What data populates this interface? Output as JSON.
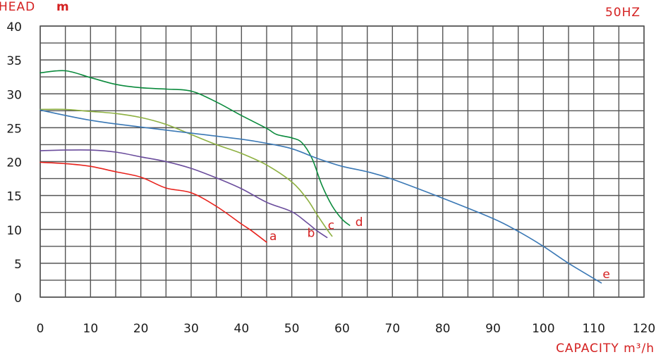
{
  "chart_data": {
    "type": "line",
    "title": "50HZ",
    "ylabel": "HEAD",
    "ylabel_unit": "m",
    "xlabel": "CAPACITY m³/h",
    "xlim": [
      0,
      120
    ],
    "ylim": [
      0,
      40
    ],
    "x_ticks": [
      0,
      10,
      20,
      30,
      40,
      50,
      60,
      70,
      80,
      90,
      100,
      110,
      120
    ],
    "y_ticks": [
      0,
      5,
      10,
      15,
      20,
      25,
      30,
      35,
      40
    ],
    "grid": true,
    "series": [
      {
        "name": "a",
        "color": "#e8231d",
        "points": [
          [
            0,
            19.9
          ],
          [
            5,
            19.7
          ],
          [
            10,
            19.3
          ],
          [
            15,
            18.5
          ],
          [
            20,
            17.7
          ],
          [
            25,
            16.1
          ],
          [
            30,
            15.4
          ],
          [
            35,
            13.4
          ],
          [
            40,
            10.8
          ],
          [
            42,
            9.8
          ],
          [
            45,
            8.1
          ]
        ]
      },
      {
        "name": "b",
        "color": "#6a4c9c",
        "points": [
          [
            0,
            21.6
          ],
          [
            5,
            21.7
          ],
          [
            10,
            21.7
          ],
          [
            15,
            21.4
          ],
          [
            20,
            20.7
          ],
          [
            25,
            20.0
          ],
          [
            30,
            19.0
          ],
          [
            35,
            17.6
          ],
          [
            40,
            16.0
          ],
          [
            45,
            14.0
          ],
          [
            50,
            12.6
          ],
          [
            53,
            11.0
          ],
          [
            55,
            9.8
          ],
          [
            57,
            8.8
          ]
        ]
      },
      {
        "name": "c",
        "color": "#8db040",
        "points": [
          [
            0,
            27.7
          ],
          [
            5,
            27.7
          ],
          [
            10,
            27.4
          ],
          [
            15,
            27.1
          ],
          [
            20,
            26.5
          ],
          [
            25,
            25.5
          ],
          [
            30,
            24.0
          ],
          [
            35,
            22.5
          ],
          [
            40,
            21.2
          ],
          [
            45,
            19.5
          ],
          [
            50,
            17.0
          ],
          [
            53,
            14.5
          ],
          [
            55,
            12.2
          ],
          [
            57,
            10.0
          ],
          [
            58,
            9.0
          ]
        ]
      },
      {
        "name": "d",
        "color": "#0a8a3c",
        "points": [
          [
            0,
            33.1
          ],
          [
            5,
            33.4
          ],
          [
            10,
            32.4
          ],
          [
            15,
            31.4
          ],
          [
            20,
            30.9
          ],
          [
            25,
            30.7
          ],
          [
            30,
            30.4
          ],
          [
            35,
            28.8
          ],
          [
            40,
            26.8
          ],
          [
            45,
            24.9
          ],
          [
            47,
            24.0
          ],
          [
            50,
            23.5
          ],
          [
            52,
            22.8
          ],
          [
            54,
            20.5
          ],
          [
            56,
            16.5
          ],
          [
            58,
            13.5
          ],
          [
            60,
            11.5
          ],
          [
            61.5,
            10.6
          ]
        ]
      },
      {
        "name": "e",
        "color": "#3a78b5",
        "points": [
          [
            0,
            27.6
          ],
          [
            10,
            26.1
          ],
          [
            20,
            25.1
          ],
          [
            30,
            24.2
          ],
          [
            40,
            23.3
          ],
          [
            45,
            22.7
          ],
          [
            50,
            21.9
          ],
          [
            55,
            20.5
          ],
          [
            60,
            19.3
          ],
          [
            65,
            18.5
          ],
          [
            70,
            17.4
          ],
          [
            80,
            14.6
          ],
          [
            90,
            11.6
          ],
          [
            95,
            9.7
          ],
          [
            100,
            7.5
          ],
          [
            105,
            5.0
          ],
          [
            111.5,
            2.1
          ]
        ]
      }
    ]
  }
}
